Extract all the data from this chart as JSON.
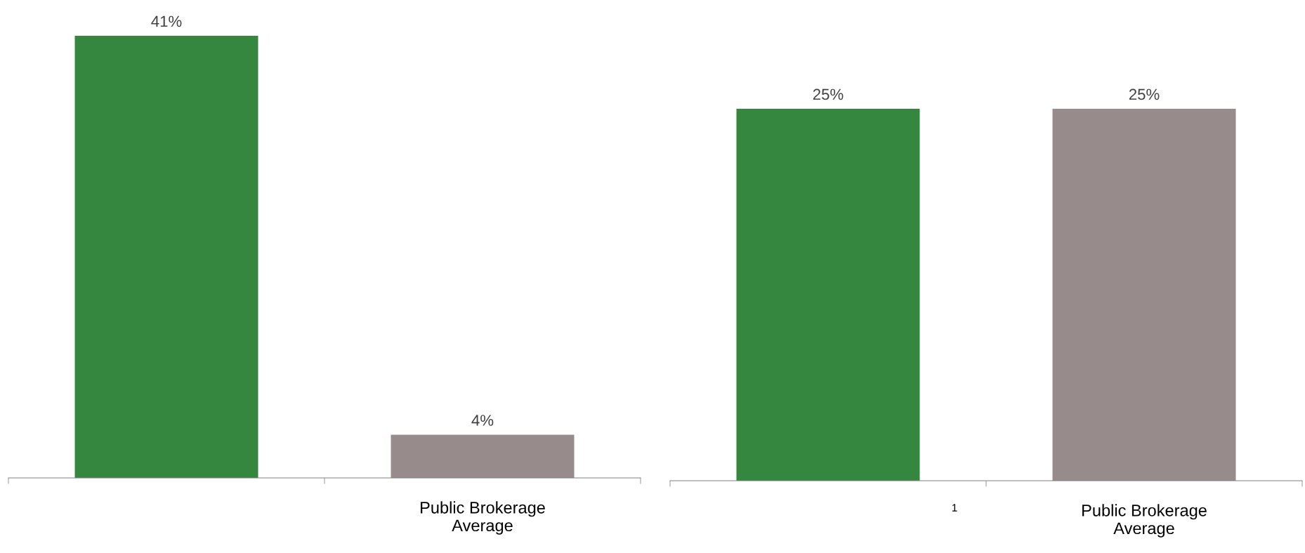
{
  "chart_data": [
    {
      "type": "bar",
      "categories": [
        null,
        "Public Brokerage Average"
      ],
      "values": [
        41,
        4
      ],
      "colors": [
        "#35863f",
        "#988b8c"
      ],
      "value_labels": [
        "41%",
        "4%"
      ],
      "tick_labels": "x",
      "grid": false,
      "legend": false
    },
    {
      "type": "bar",
      "categories": [
        null,
        "Public Brokerage Average"
      ],
      "values": [
        25,
        25
      ],
      "colors": [
        "#35863f",
        "#988b8c"
      ],
      "value_labels": [
        "25%",
        "25%"
      ],
      "tick_labels": "x",
      "grid": false,
      "legend": false,
      "annotations": [
        "1"
      ]
    }
  ]
}
